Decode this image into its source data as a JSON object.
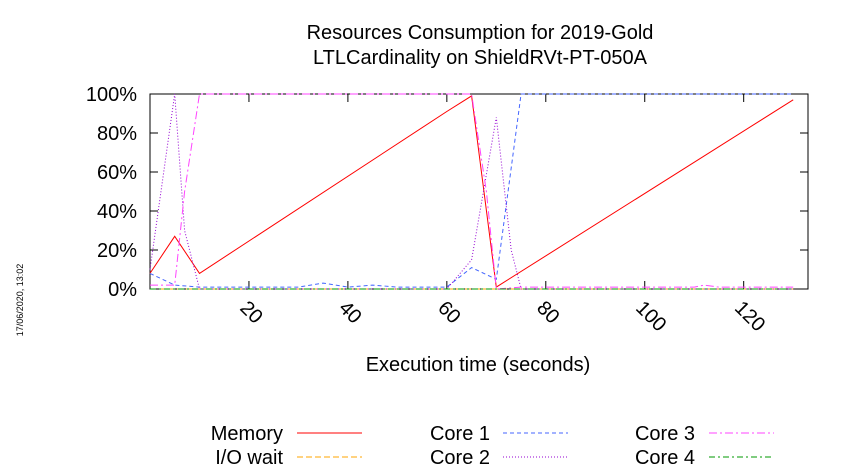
{
  "chart_data": {
    "type": "line",
    "title_line1": "Resources Consumption for 2019-Gold",
    "title_line2": "LTLCardinality on ShieldRVt-PT-050A",
    "xlabel": "Execution time (seconds)",
    "ylabel": "",
    "xlim": [
      0,
      133
    ],
    "ylim": [
      0,
      100
    ],
    "x_ticks": [
      20,
      40,
      60,
      80,
      100,
      120
    ],
    "y_ticks": [
      0,
      20,
      40,
      60,
      80,
      100
    ],
    "y_tick_suffix": "%",
    "timestamp": "17/06/2020, 13:02",
    "legend_position": "bottom",
    "series": [
      {
        "name": "Memory",
        "color": "#ff0000",
        "dash": "",
        "points": [
          [
            0,
            8
          ],
          [
            5,
            27
          ],
          [
            10,
            8
          ],
          [
            60,
            91
          ],
          [
            65,
            99
          ],
          [
            70,
            1
          ],
          [
            130,
            97
          ]
        ]
      },
      {
        "name": "I/O wait",
        "color": "#ffa500",
        "dash": "6,3",
        "points": [
          [
            0,
            0
          ],
          [
            130,
            0
          ]
        ]
      },
      {
        "name": "Core 1",
        "color": "#4466ff",
        "dash": "4,3",
        "points": [
          [
            0,
            8
          ],
          [
            5,
            2
          ],
          [
            10,
            1
          ],
          [
            20,
            1
          ],
          [
            30,
            1
          ],
          [
            35,
            3
          ],
          [
            40,
            1
          ],
          [
            45,
            2
          ],
          [
            50,
            1
          ],
          [
            60,
            1
          ],
          [
            65,
            11
          ],
          [
            70,
            5
          ],
          [
            75,
            100
          ],
          [
            130,
            100
          ]
        ]
      },
      {
        "name": "Core 2",
        "color": "#9400d3",
        "dash": "1,2",
        "points": [
          [
            0,
            10
          ],
          [
            5,
            100
          ],
          [
            7,
            30
          ],
          [
            10,
            0
          ],
          [
            60,
            0
          ],
          [
            65,
            15
          ],
          [
            70,
            88
          ],
          [
            73,
            20
          ],
          [
            75,
            0
          ],
          [
            130,
            0
          ]
        ]
      },
      {
        "name": "Core 3",
        "color": "#ff44ff",
        "dash": "8,3,2,3",
        "points": [
          [
            0,
            2
          ],
          [
            5,
            2
          ],
          [
            7,
            50
          ],
          [
            10,
            100
          ],
          [
            65,
            100
          ],
          [
            68,
            50
          ],
          [
            70,
            0
          ],
          [
            75,
            1
          ],
          [
            110,
            1
          ],
          [
            112,
            2
          ],
          [
            115,
            1
          ],
          [
            130,
            1
          ]
        ]
      },
      {
        "name": "Core 4",
        "color": "#009900",
        "dash": "6,3,2,3",
        "points": [
          [
            0,
            0
          ],
          [
            130,
            0
          ]
        ]
      }
    ]
  }
}
